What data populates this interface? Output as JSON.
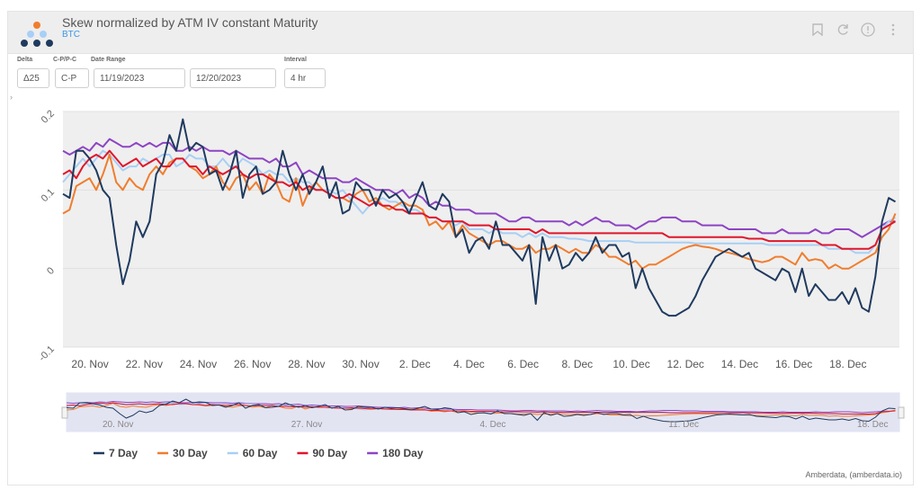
{
  "header": {
    "title": "Skew normalized by ATM IV constant Maturity",
    "subtitle": "BTC",
    "icons": [
      "bookmark-icon",
      "refresh-icon",
      "info-icon",
      "more-icon"
    ]
  },
  "controls": {
    "delta_label": "Delta",
    "delta_value": "Δ25",
    "cp_label": "C-P/P-C",
    "cp_value": "C-P",
    "date_range_label": "Date Range",
    "date_start": "11/19/2023",
    "date_end": "12/20/2023",
    "interval_label": "Interval",
    "interval_value": "4 hr"
  },
  "attribution": "Amberdata, (amberdata.io)",
  "colors": {
    "7 Day": "#1f3a5f",
    "30 Day": "#f07d2e",
    "60 Day": "#a8cff5",
    "90 Day": "#e0162b",
    "180 Day": "#8e44c4"
  },
  "chart_data": {
    "type": "line",
    "title": "Skew normalized by ATM IV constant Maturity",
    "xlabel": "",
    "ylabel": "",
    "x_start_day": 19.0,
    "x_end_day": 49.75,
    "xlim_day": [
      19.0,
      49.9
    ],
    "ylim": [
      -0.1,
      0.2
    ],
    "yticks": [
      -0.1,
      0,
      0.1,
      0.2
    ],
    "ytick_labels": [
      "-0.1",
      "0",
      "0.1",
      "0.2"
    ],
    "xticks_day": [
      20,
      22,
      24,
      26,
      28,
      30,
      32,
      34,
      36,
      38,
      40,
      42,
      44,
      46,
      48
    ],
    "xtick_labels": [
      "20. Nov",
      "22. Nov",
      "24. Nov",
      "26. Nov",
      "28. Nov",
      "30. Nov",
      "2. Dec",
      "4. Dec",
      "6. Dec",
      "8. Dec",
      "10. Dec",
      "12. Dec",
      "14. Dec",
      "16. Dec",
      "18. Dec"
    ],
    "navigator_labels": [
      "20. Nov",
      "27. Nov",
      "4. Dec",
      "11. Dec",
      "18. Dec"
    ],
    "legend_position": "bottom-left",
    "series": [
      {
        "name": "7 Day",
        "values": [
          0.095,
          0.09,
          0.15,
          0.15,
          0.14,
          0.125,
          0.1,
          0.09,
          0.03,
          -0.02,
          0.01,
          0.06,
          0.04,
          0.06,
          0.12,
          0.135,
          0.17,
          0.15,
          0.19,
          0.15,
          0.16,
          0.155,
          0.12,
          0.125,
          0.1,
          0.12,
          0.15,
          0.09,
          0.12,
          0.13,
          0.095,
          0.1,
          0.11,
          0.15,
          0.12,
          0.1,
          0.12,
          0.095,
          0.11,
          0.13,
          0.09,
          0.11,
          0.07,
          0.075,
          0.11,
          0.1,
          0.1,
          0.08,
          0.1,
          0.09,
          0.095,
          0.085,
          0.07,
          0.09,
          0.11,
          0.08,
          0.075,
          0.095,
          0.085,
          0.04,
          0.05,
          0.02,
          0.035,
          0.04,
          0.025,
          0.06,
          0.03,
          0.03,
          0.02,
          0.01,
          0.03,
          -0.045,
          0.04,
          0.01,
          0.03,
          0.0,
          0.005,
          0.02,
          0.01,
          0.02,
          0.04,
          0.02,
          0.03,
          0.03,
          0.015,
          0.02,
          -0.025,
          0.0,
          -0.025,
          -0.04,
          -0.055,
          -0.06,
          -0.06,
          -0.055,
          -0.05,
          -0.035,
          -0.015,
          0.0,
          0.015,
          0.02,
          0.025,
          0.02,
          0.015,
          0.02,
          0.0,
          -0.005,
          -0.01,
          -0.015,
          0.0,
          -0.005,
          -0.03,
          0.0,
          -0.035,
          -0.02,
          -0.03,
          -0.04,
          -0.04,
          -0.03,
          -0.045,
          -0.025,
          -0.05,
          -0.055,
          -0.01,
          0.06,
          0.09,
          0.085
        ]
      },
      {
        "name": "30 Day",
        "values": [
          0.07,
          0.075,
          0.105,
          0.11,
          0.115,
          0.1,
          0.12,
          0.145,
          0.11,
          0.1,
          0.115,
          0.105,
          0.1,
          0.12,
          0.13,
          0.12,
          0.135,
          0.14,
          0.14,
          0.13,
          0.125,
          0.115,
          0.12,
          0.13,
          0.11,
          0.1,
          0.115,
          0.12,
          0.1,
          0.11,
          0.095,
          0.12,
          0.11,
          0.09,
          0.085,
          0.115,
          0.08,
          0.1,
          0.11,
          0.1,
          0.095,
          0.09,
          0.09,
          0.085,
          0.095,
          0.1,
          0.085,
          0.09,
          0.08,
          0.075,
          0.08,
          0.085,
          0.08,
          0.08,
          0.075,
          0.055,
          0.06,
          0.05,
          0.06,
          0.04,
          0.055,
          0.045,
          0.04,
          0.035,
          0.03,
          0.035,
          0.035,
          0.03,
          0.025,
          0.025,
          0.03,
          0.02,
          0.025,
          0.025,
          0.03,
          0.025,
          0.02,
          0.025,
          0.02,
          0.02,
          0.03,
          0.025,
          0.015,
          0.015,
          0.01,
          0.005,
          0.01,
          0.0,
          0.005,
          0.005,
          0.01,
          0.015,
          0.02,
          0.025,
          0.028,
          0.03,
          0.028,
          0.027,
          0.025,
          0.022,
          0.02,
          0.018,
          0.015,
          0.012,
          0.01,
          0.008,
          0.01,
          0.015,
          0.015,
          0.01,
          0.005,
          0.02,
          0.01,
          0.012,
          0.01,
          0.0,
          0.005,
          0.0,
          0.0,
          0.005,
          0.01,
          0.015,
          0.02,
          0.04,
          0.05,
          0.07
        ]
      },
      {
        "name": "60 Day",
        "values": [
          0.11,
          0.12,
          0.13,
          0.14,
          0.13,
          0.14,
          0.15,
          0.145,
          0.135,
          0.125,
          0.13,
          0.13,
          0.14,
          0.135,
          0.14,
          0.145,
          0.145,
          0.13,
          0.135,
          0.145,
          0.14,
          0.14,
          0.13,
          0.13,
          0.14,
          0.13,
          0.13,
          0.14,
          0.135,
          0.13,
          0.12,
          0.125,
          0.12,
          0.12,
          0.11,
          0.115,
          0.11,
          0.11,
          0.1,
          0.1,
          0.1,
          0.095,
          0.1,
          0.09,
          0.08,
          0.07,
          0.08,
          0.085,
          0.09,
          0.085,
          0.085,
          0.08,
          0.075,
          0.075,
          0.07,
          0.065,
          0.065,
          0.06,
          0.06,
          0.055,
          0.06,
          0.05,
          0.05,
          0.05,
          0.045,
          0.05,
          0.045,
          0.045,
          0.045,
          0.04,
          0.045,
          0.04,
          0.045,
          0.04,
          0.04,
          0.04,
          0.038,
          0.038,
          0.037,
          0.035,
          0.035,
          0.035,
          0.035,
          0.035,
          0.035,
          0.035,
          0.033,
          0.033,
          0.033,
          0.033,
          0.033,
          0.033,
          0.033,
          0.033,
          0.033,
          0.032,
          0.032,
          0.032,
          0.032,
          0.032,
          0.032,
          0.032,
          0.032,
          0.032,
          0.032,
          0.032,
          0.03,
          0.03,
          0.03,
          0.03,
          0.03,
          0.03,
          0.03,
          0.03,
          0.03,
          0.025,
          0.025,
          0.025,
          0.025,
          0.02,
          0.02,
          0.02,
          0.03,
          0.05,
          0.06,
          0.065
        ]
      },
      {
        "name": "90 Day",
        "values": [
          0.12,
          0.125,
          0.115,
          0.13,
          0.14,
          0.145,
          0.14,
          0.15,
          0.14,
          0.13,
          0.135,
          0.14,
          0.13,
          0.135,
          0.14,
          0.13,
          0.13,
          0.14,
          0.14,
          0.13,
          0.13,
          0.12,
          0.13,
          0.125,
          0.12,
          0.125,
          0.13,
          0.12,
          0.115,
          0.12,
          0.12,
          0.115,
          0.11,
          0.11,
          0.105,
          0.11,
          0.1,
          0.105,
          0.1,
          0.1,
          0.095,
          0.09,
          0.09,
          0.095,
          0.09,
          0.085,
          0.08,
          0.085,
          0.08,
          0.08,
          0.075,
          0.075,
          0.07,
          0.07,
          0.07,
          0.065,
          0.065,
          0.06,
          0.06,
          0.06,
          0.06,
          0.055,
          0.055,
          0.055,
          0.055,
          0.05,
          0.05,
          0.05,
          0.05,
          0.05,
          0.05,
          0.045,
          0.05,
          0.045,
          0.045,
          0.045,
          0.045,
          0.045,
          0.045,
          0.045,
          0.045,
          0.045,
          0.045,
          0.045,
          0.045,
          0.045,
          0.045,
          0.045,
          0.045,
          0.045,
          0.045,
          0.04,
          0.04,
          0.04,
          0.04,
          0.04,
          0.04,
          0.04,
          0.04,
          0.04,
          0.04,
          0.04,
          0.04,
          0.038,
          0.038,
          0.038,
          0.035,
          0.035,
          0.035,
          0.035,
          0.035,
          0.035,
          0.035,
          0.035,
          0.03,
          0.03,
          0.03,
          0.025,
          0.025,
          0.025,
          0.025,
          0.025,
          0.03,
          0.05,
          0.055,
          0.06
        ]
      },
      {
        "name": "180 Day",
        "values": [
          0.15,
          0.145,
          0.15,
          0.155,
          0.15,
          0.16,
          0.155,
          0.165,
          0.16,
          0.155,
          0.155,
          0.16,
          0.155,
          0.16,
          0.155,
          0.16,
          0.16,
          0.15,
          0.15,
          0.155,
          0.15,
          0.155,
          0.15,
          0.15,
          0.15,
          0.145,
          0.15,
          0.145,
          0.14,
          0.14,
          0.14,
          0.135,
          0.14,
          0.13,
          0.13,
          0.135,
          0.12,
          0.125,
          0.12,
          0.115,
          0.115,
          0.115,
          0.11,
          0.11,
          0.115,
          0.11,
          0.105,
          0.1,
          0.1,
          0.1,
          0.095,
          0.1,
          0.09,
          0.095,
          0.09,
          0.08,
          0.085,
          0.08,
          0.08,
          0.075,
          0.075,
          0.075,
          0.07,
          0.07,
          0.07,
          0.07,
          0.065,
          0.06,
          0.06,
          0.065,
          0.065,
          0.06,
          0.06,
          0.06,
          0.06,
          0.06,
          0.055,
          0.06,
          0.055,
          0.06,
          0.065,
          0.06,
          0.06,
          0.055,
          0.055,
          0.055,
          0.05,
          0.055,
          0.06,
          0.06,
          0.065,
          0.065,
          0.065,
          0.06,
          0.06,
          0.06,
          0.055,
          0.055,
          0.055,
          0.055,
          0.05,
          0.05,
          0.05,
          0.05,
          0.05,
          0.045,
          0.045,
          0.045,
          0.05,
          0.045,
          0.045,
          0.045,
          0.045,
          0.05,
          0.045,
          0.045,
          0.05,
          0.05,
          0.05,
          0.045,
          0.04,
          0.045,
          0.05,
          0.055,
          0.06,
          0.06
        ]
      }
    ]
  }
}
